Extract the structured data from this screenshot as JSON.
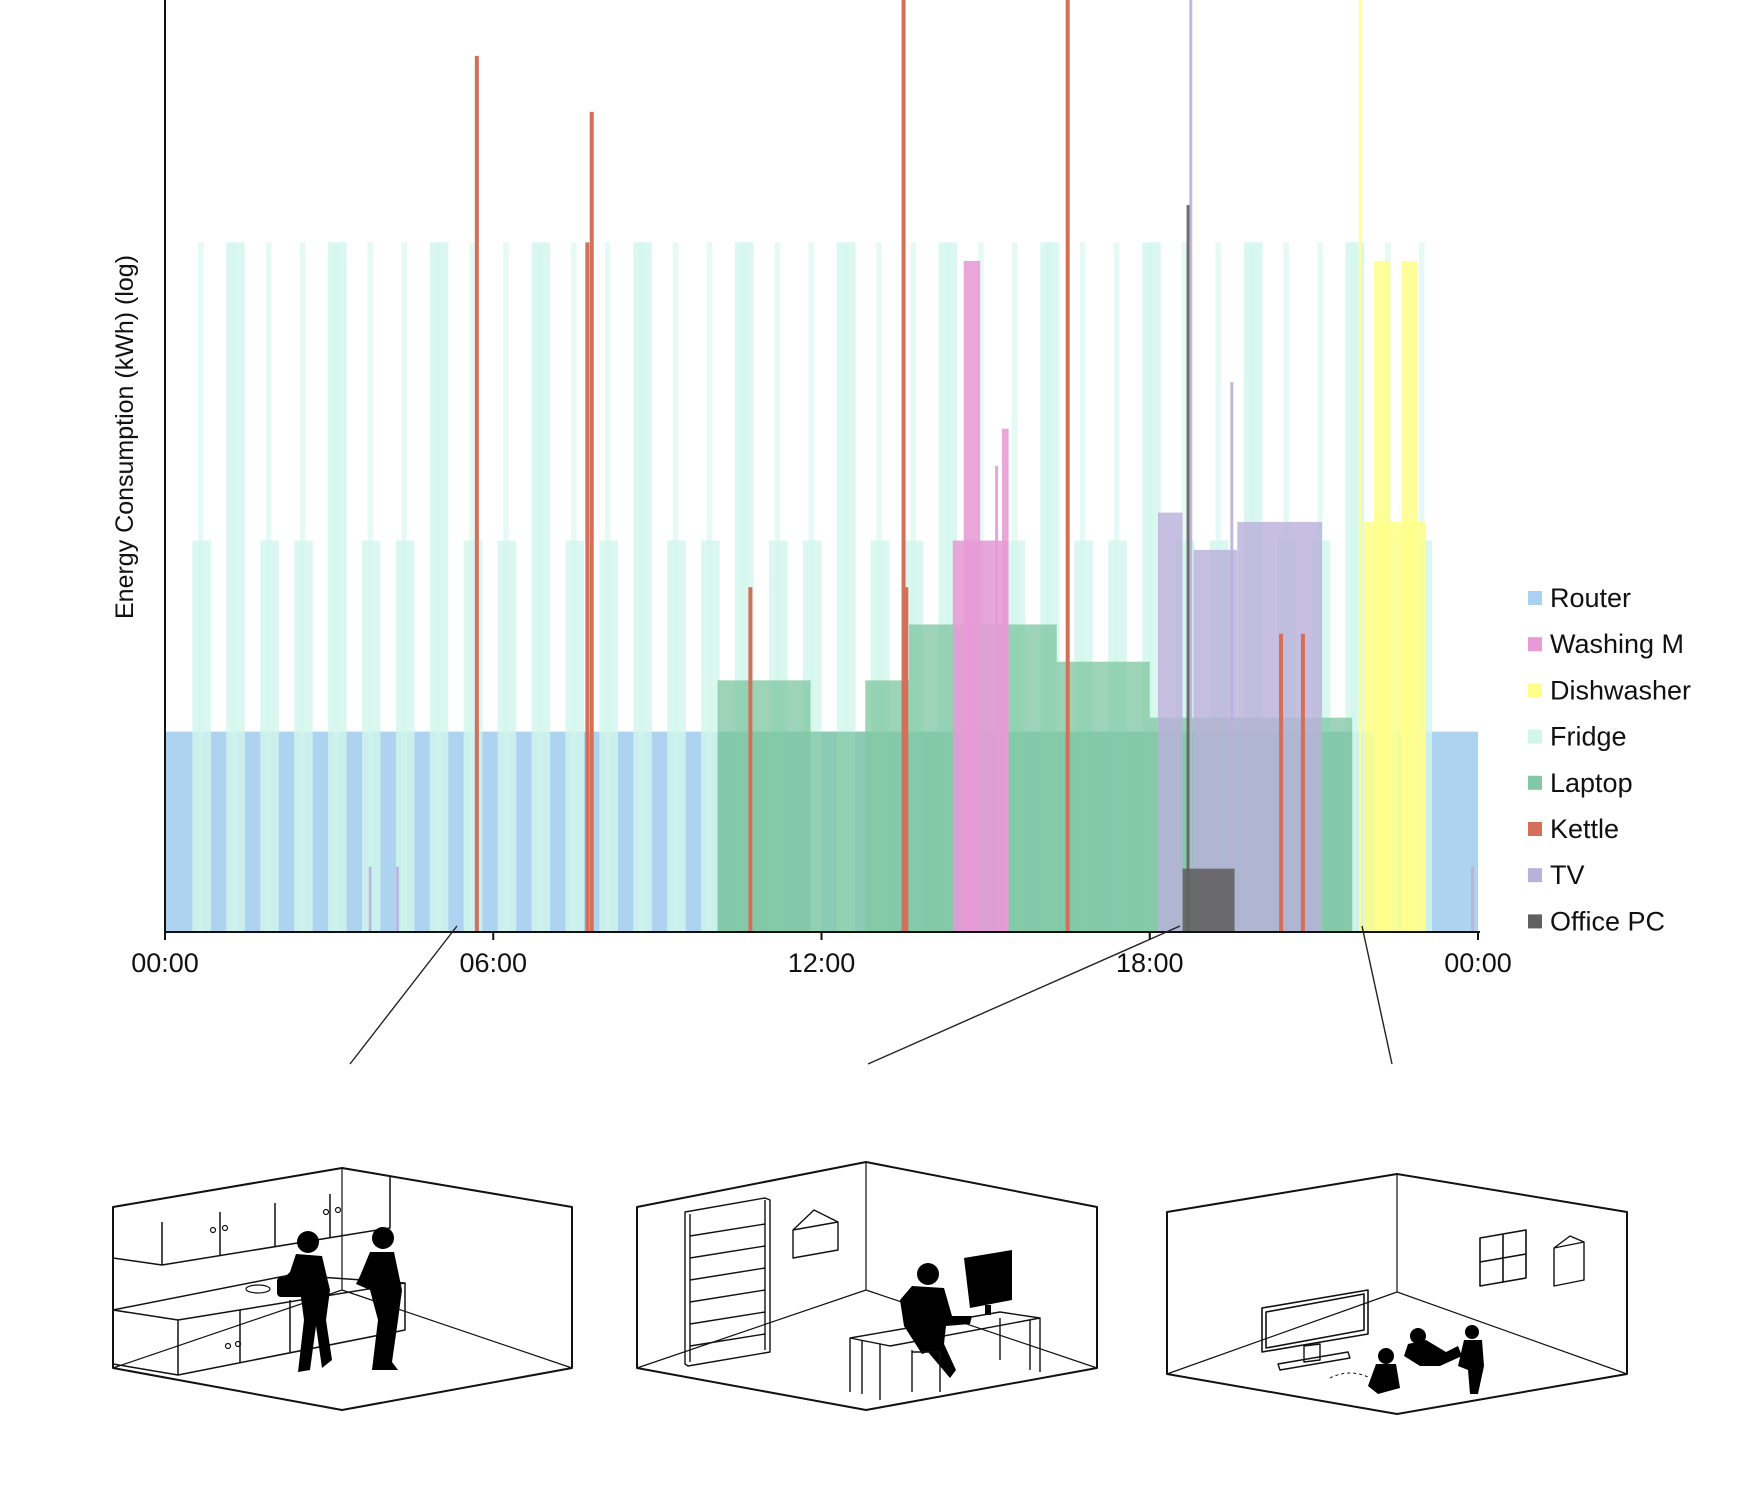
{
  "chart_data": {
    "type": "area",
    "ylabel": "Energy Consumption (kWh) (log)",
    "xlabel": "",
    "y_scale": "log",
    "x_ticks": [
      "00:00",
      "06:00",
      "12:00",
      "18:00",
      "00:00"
    ],
    "x_tick_hours": [
      0,
      6,
      12,
      18,
      24
    ],
    "xlim_hours": [
      0,
      24
    ],
    "ylim_relative": [
      0,
      1
    ],
    "grid": false,
    "legend_position": "right",
    "series": [
      {
        "name": "Router",
        "color": "#a9d1f0",
        "spans": [
          {
            "start": 0.0,
            "end": 24.0,
            "level": 0.215
          }
        ]
      },
      {
        "name": "Washing M",
        "color": "#e79ad6",
        "spans": [
          {
            "start": 14.4,
            "end": 15.4,
            "level": 0.42
          },
          {
            "start": 14.6,
            "end": 14.9,
            "level": 0.72
          },
          {
            "start": 15.3,
            "end": 15.42,
            "level": 0.54
          }
        ],
        "spikes": [
          {
            "t": 15.2,
            "level": 0.5
          }
        ]
      },
      {
        "name": "Dishwasher",
        "color": "#ffff8c",
        "spans": [
          {
            "start": 21.9,
            "end": 23.05,
            "level": 0.44
          },
          {
            "start": 22.6,
            "end": 22.9,
            "level": 0.72
          },
          {
            "start": 22.1,
            "end": 22.4,
            "level": 0.72
          }
        ],
        "spikes": [
          {
            "t": 21.85,
            "level": 1.0
          }
        ]
      },
      {
        "name": "Fridge",
        "color": "#d2f6ec",
        "cycles_start": 0.5,
        "cycles_end": 23.2,
        "cycle_period": 0.62,
        "cycle_width": 0.34,
        "base_level": 0.42,
        "peak_level": 0.74
      },
      {
        "name": "Laptop",
        "color": "#82c8a4",
        "spans": [
          {
            "start": 10.1,
            "end": 11.8,
            "level": 0.27
          },
          {
            "start": 12.8,
            "end": 13.6,
            "level": 0.27
          },
          {
            "start": 13.6,
            "end": 16.3,
            "level": 0.33
          },
          {
            "start": 16.3,
            "end": 18.0,
            "level": 0.29
          },
          {
            "start": 18.0,
            "end": 21.7,
            "level": 0.23
          },
          {
            "start": 10.1,
            "end": 21.7,
            "level": 0.215
          }
        ]
      },
      {
        "name": "Kettle",
        "color": "#d4705a",
        "spikes": [
          {
            "t": 5.7,
            "level": 0.94
          },
          {
            "t": 7.72,
            "level": 0.74
          },
          {
            "t": 7.8,
            "level": 0.88
          },
          {
            "t": 10.7,
            "level": 0.37
          },
          {
            "t": 13.5,
            "level": 1.0
          },
          {
            "t": 13.55,
            "level": 0.37
          },
          {
            "t": 16.5,
            "level": 1.0
          },
          {
            "t": 20.4,
            "level": 0.32
          },
          {
            "t": 20.8,
            "level": 0.32
          }
        ]
      },
      {
        "name": "TV",
        "color": "#b9b1da",
        "spans": [
          {
            "start": 18.15,
            "end": 18.6,
            "level": 0.45
          },
          {
            "start": 18.8,
            "end": 19.6,
            "level": 0.41
          },
          {
            "start": 19.6,
            "end": 20.3,
            "level": 0.44
          },
          {
            "start": 20.3,
            "end": 21.15,
            "level": 0.44
          }
        ],
        "spikes": [
          {
            "t": 3.75,
            "level": 0.07
          },
          {
            "t": 4.25,
            "level": 0.07
          },
          {
            "t": 23.9,
            "level": 0.07
          },
          {
            "t": 18.75,
            "level": 1.0
          },
          {
            "t": 19.5,
            "level": 0.59
          }
        ]
      },
      {
        "name": "Office PC",
        "color": "#606060",
        "spans": [
          {
            "start": 18.6,
            "end": 19.55,
            "level": 0.068
          }
        ],
        "spikes": [
          {
            "t": 18.7,
            "level": 0.78
          }
        ]
      }
    ]
  }
}
